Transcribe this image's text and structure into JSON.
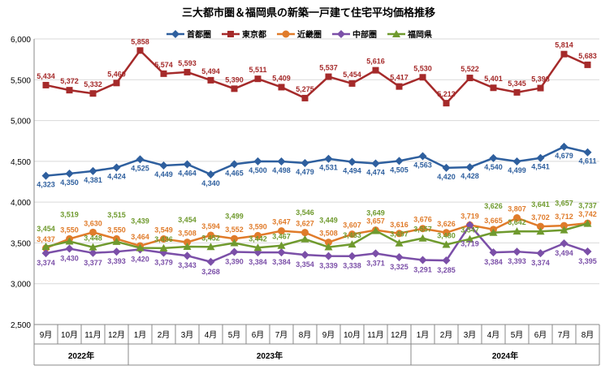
{
  "chart_data": {
    "type": "line",
    "title": "三大都市圏＆福岡県の新築一戸建て住宅平均価格推移",
    "categories": [
      "9月",
      "10月",
      "11月",
      "12月",
      "1月",
      "2月",
      "3月",
      "4月",
      "5月",
      "6月",
      "7月",
      "8月",
      "9月",
      "10月",
      "11月",
      "12月",
      "1月",
      "2月",
      "3月",
      "4月",
      "5月",
      "6月",
      "7月",
      "8月"
    ],
    "years": [
      {
        "label": "2022年",
        "span": 4
      },
      {
        "label": "2023年",
        "span": 12
      },
      {
        "label": "2024年",
        "span": 8
      }
    ],
    "ylim": [
      2500,
      6000
    ],
    "yticks": [
      2500,
      3000,
      3500,
      4000,
      4500,
      5000,
      5500,
      6000
    ],
    "ytick_labels": [
      "2,500",
      "3,000",
      "3,500",
      "4,000",
      "4,500",
      "5,000",
      "5,500",
      "6,000"
    ],
    "grid": "horizontal",
    "legend_position": "top",
    "series": [
      {
        "name": "首都圏",
        "color": "#2e5f9e",
        "marker": "diamond",
        "values": [
          4323,
          4350,
          4381,
          4424,
          4525,
          4449,
          4464,
          4340,
          4465,
          4500,
          4498,
          4479,
          4531,
          4494,
          4474,
          4505,
          4563,
          4420,
          4428,
          4540,
          4499,
          4541,
          4679,
          4611
        ]
      },
      {
        "name": "東京都",
        "color": "#a52a2a",
        "marker": "square",
        "values": [
          5434,
          5372,
          5332,
          5460,
          5858,
          5574,
          5593,
          5494,
          5390,
          5511,
          5409,
          5275,
          5537,
          5454,
          5616,
          5417,
          5530,
          5213,
          5522,
          5401,
          5345,
          5398,
          5814,
          5683
        ]
      },
      {
        "name": "近畿圏",
        "color": "#e07b2a",
        "marker": "circle",
        "values": [
          3437,
          3550,
          3630,
          3550,
          3464,
          3549,
          3508,
          3594,
          3552,
          3590,
          3647,
          3627,
          3508,
          3607,
          3657,
          3616,
          3676,
          3626,
          3719,
          3665,
          3807,
          3702,
          3712,
          3742
        ]
      },
      {
        "name": "中部圏",
        "color": "#7b4fa8",
        "marker": "diamond",
        "values": [
          3374,
          3430,
          3377,
          3393,
          3420,
          3379,
          3343,
          3268,
          3390,
          3384,
          3384,
          3354,
          3339,
          3338,
          3371,
          3325,
          3291,
          3285,
          3719,
          3384,
          3393,
          3374,
          3494,
          3395
        ]
      },
      {
        "name": "福岡県",
        "color": "#6f9a2e",
        "marker": "triangle",
        "values": [
          3454,
          3519,
          3448,
          3515,
          3439,
          3436,
          3454,
          3452,
          3499,
          3442,
          3467,
          3546,
          3449,
          3483,
          3649,
          3497,
          3557,
          3480,
          3547,
          3626,
          3642,
          3641,
          3657,
          3737
        ]
      }
    ]
  }
}
